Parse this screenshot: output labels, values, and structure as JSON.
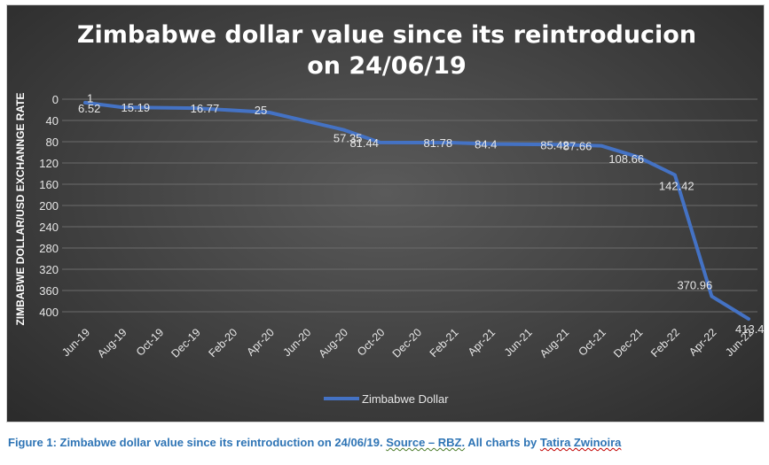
{
  "chart_data": {
    "type": "line",
    "title": "Zimbabwe dollar value since its reintroducion on 24/06/19",
    "title_lines": [
      "Zimbabwe dollar value since its reintroducion",
      "on 24/06/19"
    ],
    "ylabel": "ZIMBABWE DOLLAR/USD EXCHANNGE RATE",
    "xlabel": "",
    "categories": [
      "Jun-19",
      "Aug-19",
      "Oct-19",
      "Dec-19",
      "Feb-20",
      "Apr-20",
      "Jun-20",
      "Aug-20",
      "Oct-20",
      "Dec-20",
      "Feb-21",
      "Apr-21",
      "Jun-21",
      "Aug-21",
      "Oct-21",
      "Dec-21",
      "Feb-22",
      "Apr-22",
      "Jun-22"
    ],
    "points": [
      {
        "x": "Jun-19",
        "y": 6.52,
        "label": "6.52"
      },
      {
        "x": "Jun-19",
        "y": 1,
        "label": "1"
      },
      {
        "x": "Aug-19",
        "y": 15.19,
        "label": "15.19"
      },
      {
        "x": "Dec-19",
        "y": 16.77,
        "label": "16.77"
      },
      {
        "x": "Apr-20",
        "y": 25,
        "label": "25"
      },
      {
        "x": "Aug-20",
        "y": 57.35,
        "label": "57.35"
      },
      {
        "x": "Oct-20",
        "y": 81.44,
        "label": "81.44"
      },
      {
        "x": "Feb-21",
        "y": 81.78,
        "label": "81.78"
      },
      {
        "x": "Apr-21",
        "y": 84.4,
        "label": "84.4"
      },
      {
        "x": "Aug-21",
        "y": 85.42,
        "label": "85.42"
      },
      {
        "x": "Oct-21",
        "y": 87.66,
        "label": "87.66"
      },
      {
        "x": "Dec-21",
        "y": 108.66,
        "label": "108.66"
      },
      {
        "x": "Feb-22",
        "y": 142.42,
        "label": "142.42"
      },
      {
        "x": "Apr-22",
        "y": 370.96,
        "label": "370.96"
      },
      {
        "x": "Jun-22",
        "y": 413.43,
        "label": "413.43"
      }
    ],
    "series": [
      {
        "name": "Zimbabwe Dollar"
      }
    ],
    "y_ticks": [
      0,
      40,
      80,
      120,
      160,
      200,
      240,
      280,
      320,
      360,
      400
    ],
    "ylim": [
      0,
      400
    ],
    "y_axis_reversed": true,
    "grid": true,
    "legend_position": "bottom",
    "line_color": "#4472c4",
    "background_color": "#404040",
    "text_color": "#e6e6e6"
  },
  "caption": {
    "prefix": "Figure 1: Zimbabwe dollar value since its reintroduction on 24/06/19. ",
    "source": "Source – RBZ.",
    "mid": " All charts by ",
    "author": "Tatira Zwinoira"
  }
}
